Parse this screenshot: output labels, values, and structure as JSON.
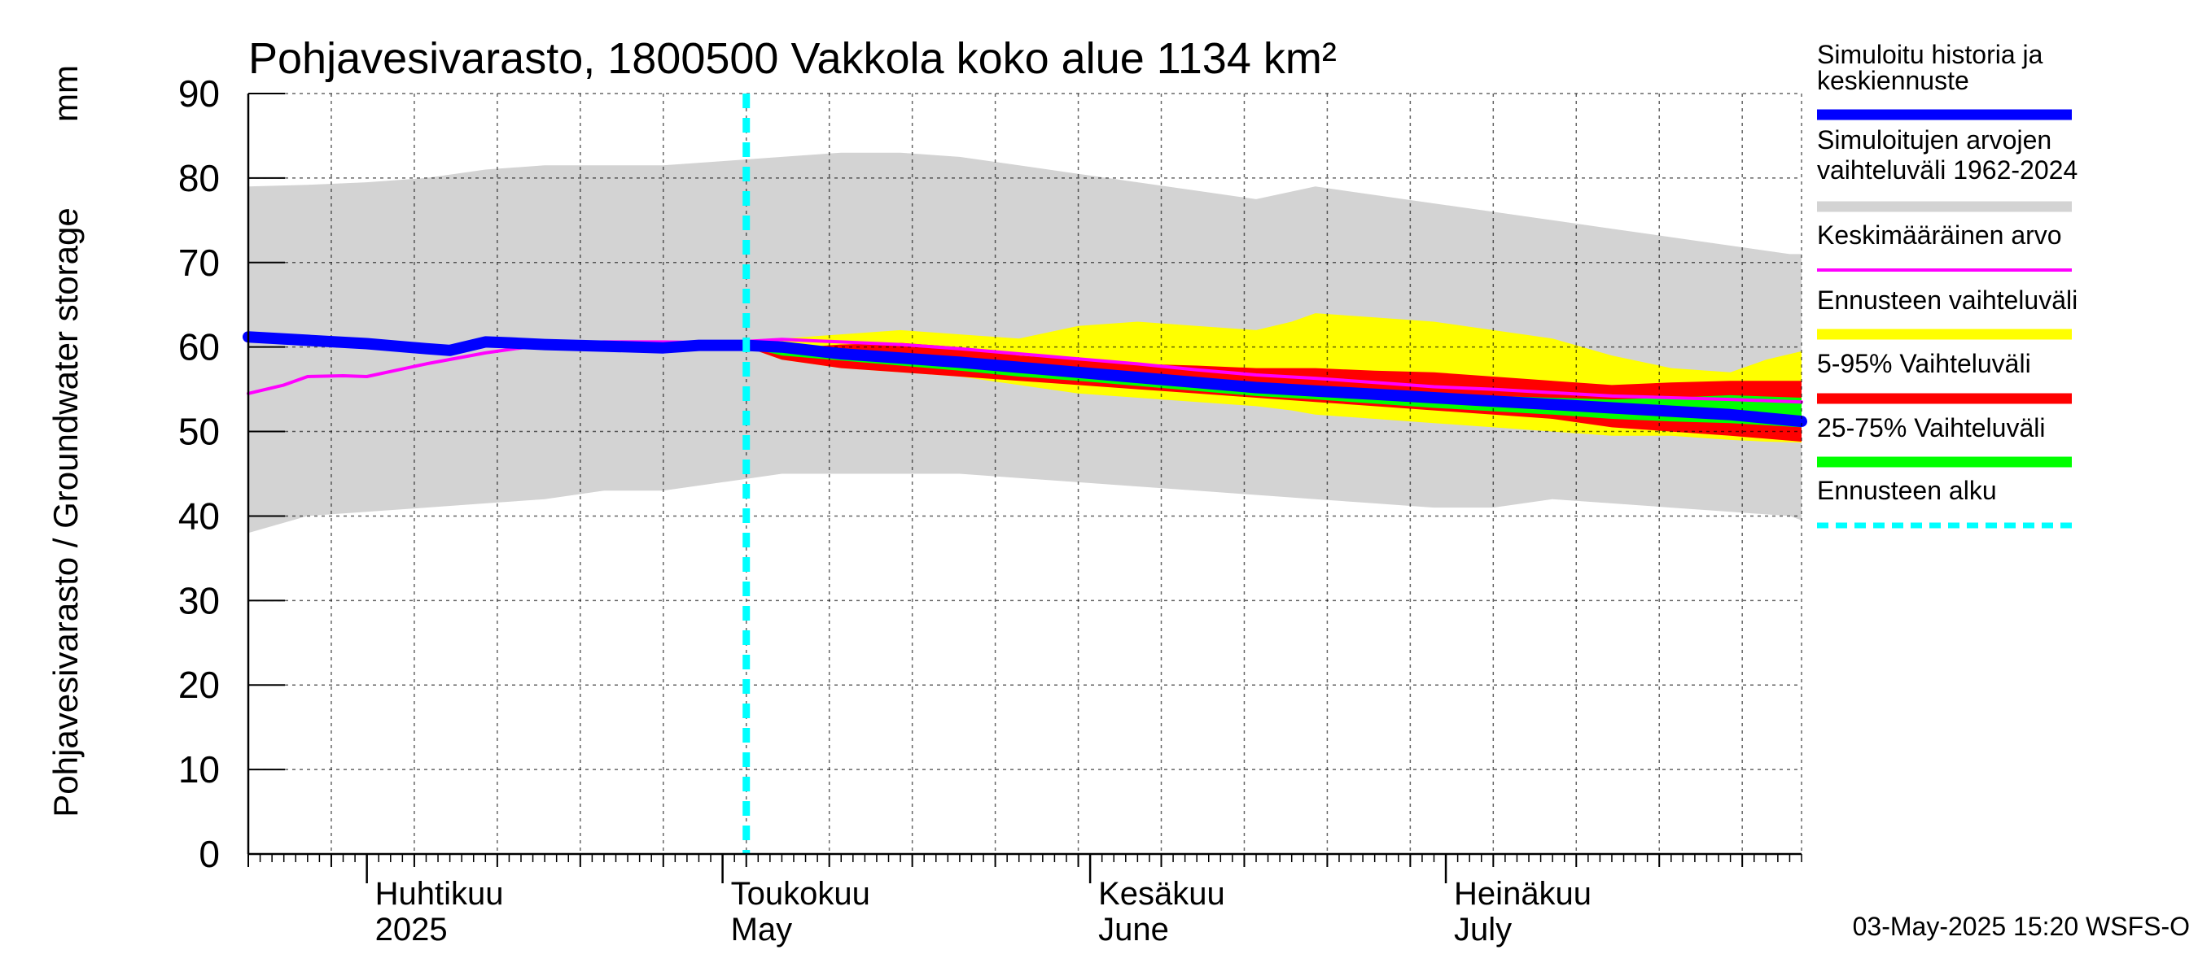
{
  "chart_data": {
    "type": "area",
    "title": "Pohjavesivarasto, 1800500 Vakkola koko alue 1134 km²",
    "unit_label": "mm",
    "ylabel": "Pohjavesivarasto / Groundwater storage",
    "ylim": [
      0,
      90
    ],
    "yticks": [
      0,
      10,
      20,
      30,
      40,
      50,
      60,
      70,
      80,
      90
    ],
    "x_start": "2025-03-22",
    "x_end": "2025-07-31",
    "forecast_start": "2025-05-03",
    "months": [
      {
        "date": "2025-04-01",
        "fi": "Huhtikuu",
        "en": "2025"
      },
      {
        "date": "2025-05-01",
        "fi": "Toukokuu",
        "en": "May"
      },
      {
        "date": "2025-06-01",
        "fi": "Kesäkuu",
        "en": "June"
      },
      {
        "date": "2025-07-01",
        "fi": "Heinäkuu",
        "en": "July"
      }
    ],
    "timestamp": "03-May-2025 15:20 WSFS-O",
    "colors": {
      "history": "#0000ff",
      "range_hist": "#d3d3d3",
      "mean": "#ff00ff",
      "forecast_range": "#ffff00",
      "p5_95": "#ff0000",
      "p25_75": "#00ff00",
      "forecast_start": "#00ffff",
      "grid": "#000000"
    },
    "legend": [
      {
        "key": "history",
        "label": "Simuloitu historia ja keskiennuste"
      },
      {
        "key": "range_hist",
        "label": "Simuloitujen arvojen vaihteluväli 1962-2024"
      },
      {
        "key": "mean",
        "label": "Keskimääräinen arvo"
      },
      {
        "key": "forecast_range",
        "label": "Ennusteen vaihteluväli"
      },
      {
        "key": "p5_95",
        "label": "5-95% Vaihteluväli"
      },
      {
        "key": "p25_75",
        "label": "25-75% Vaihteluväli"
      },
      {
        "key": "forecast_start",
        "label": "Ennusteen alku"
      }
    ],
    "series": {
      "hist_range": {
        "days": [
          0,
          5,
          10,
          15,
          20,
          25,
          30,
          35,
          40,
          45,
          50,
          55,
          60,
          65,
          70,
          75,
          80,
          85,
          90,
          95,
          100,
          105,
          110,
          115,
          120,
          125,
          130,
          131
        ],
        "upper": [
          79,
          79.2,
          79.5,
          80,
          81,
          81.5,
          81.5,
          81.5,
          82,
          82.5,
          83,
          83,
          82.5,
          81.5,
          80.5,
          79.5,
          78.5,
          77.5,
          79,
          78,
          77,
          76,
          75,
          74,
          73,
          72,
          71,
          71
        ],
        "lower": [
          38,
          40,
          40.5,
          41,
          41.5,
          42,
          43,
          43,
          44,
          45,
          45,
          45,
          45,
          44.5,
          44,
          43.5,
          43,
          42.5,
          42,
          41.5,
          41,
          41,
          42,
          41.5,
          41,
          40.5,
          40,
          39.5
        ]
      },
      "forecast_range": {
        "days": [
          42,
          45,
          50,
          55,
          60,
          65,
          70,
          75,
          80,
          85,
          88,
          90,
          95,
          100,
          105,
          110,
          115,
          120,
          125,
          128,
          131
        ],
        "upper": [
          60,
          61,
          61.5,
          62,
          61.5,
          61,
          62.5,
          63,
          62.5,
          62,
          63,
          64,
          63.5,
          63,
          62,
          61,
          59,
          57.5,
          57,
          58.5,
          59.5
        ],
        "lower": [
          60,
          58.5,
          57.5,
          57,
          56.5,
          55.5,
          54.5,
          54,
          53.5,
          53,
          52.5,
          52,
          51.5,
          51,
          50.5,
          50,
          49.5,
          49.5,
          49,
          48.8,
          48.7
        ]
      },
      "p5_95": {
        "days": [
          42,
          45,
          50,
          55,
          60,
          65,
          70,
          75,
          80,
          85,
          90,
          95,
          100,
          105,
          110,
          115,
          120,
          125,
          131
        ],
        "upper": [
          60,
          59.8,
          60.3,
          60.5,
          60,
          59,
          58.5,
          58,
          57.8,
          57.5,
          57.5,
          57.2,
          57,
          56.5,
          56,
          55.5,
          55.8,
          56,
          56
        ],
        "lower": [
          60,
          58.5,
          57.5,
          57,
          56.5,
          56,
          55.5,
          55,
          54.5,
          54,
          53.5,
          53,
          52.5,
          52,
          51.5,
          50.5,
          50,
          49.5,
          48.8
        ]
      },
      "p25_75": {
        "days": [
          42,
          45,
          50,
          55,
          60,
          65,
          70,
          75,
          80,
          85,
          90,
          95,
          100,
          105,
          110,
          115,
          120,
          125,
          131
        ],
        "upper": [
          60,
          59.6,
          59.2,
          58.8,
          58.2,
          57.6,
          57,
          56.5,
          56,
          55.5,
          55,
          54.8,
          54.5,
          54.2,
          54,
          53.8,
          54,
          54.3,
          54
        ],
        "lower": [
          60,
          59,
          58.4,
          57.8,
          57.2,
          56.5,
          56,
          55.4,
          54.8,
          54.2,
          53.8,
          53.3,
          52.8,
          52.4,
          52,
          51.5,
          51.2,
          51,
          50.5
        ]
      },
      "mean": {
        "days": [
          0,
          3,
          5,
          8,
          10,
          15,
          20,
          25,
          30,
          35,
          40,
          45,
          50,
          55,
          60,
          65,
          70,
          75,
          80,
          85,
          90,
          95,
          100,
          105,
          110,
          115,
          120,
          125,
          131
        ],
        "values": [
          54.5,
          55.5,
          56.5,
          56.6,
          56.5,
          58,
          59.3,
          60.3,
          60.6,
          60.6,
          60.5,
          60.9,
          60.6,
          60.3,
          59.8,
          59.2,
          58.6,
          58,
          57.3,
          56.7,
          56.3,
          55.8,
          55.3,
          55,
          54.6,
          54.2,
          54,
          53.8,
          53.5
        ]
      },
      "history": {
        "days": [
          0,
          5,
          10,
          15,
          17,
          20,
          22,
          25,
          30,
          35,
          38,
          40,
          42,
          45,
          50,
          55,
          60,
          65,
          70,
          75,
          80,
          85,
          90,
          95,
          100,
          105,
          110,
          115,
          120,
          125,
          131
        ],
        "values": [
          61.2,
          60.8,
          60.4,
          59.8,
          59.6,
          60.6,
          60.5,
          60.3,
          60.1,
          59.9,
          60.2,
          60.2,
          60.2,
          60,
          59.2,
          58.7,
          58.2,
          57.6,
          57,
          56.4,
          55.8,
          55.2,
          54.8,
          54.4,
          54,
          53.6,
          53.2,
          52.8,
          52.4,
          52,
          51.2
        ]
      }
    }
  }
}
